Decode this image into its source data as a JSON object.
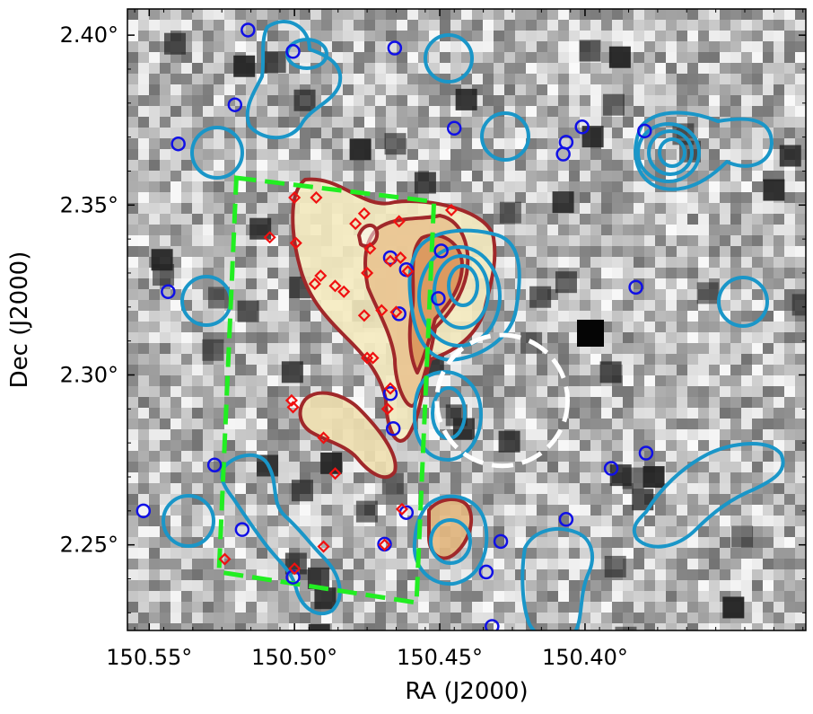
{
  "chart_data": {
    "type": "scatter",
    "title": "",
    "xlabel": "RA (J2000)",
    "ylabel": "Dec (J2000)",
    "x_reversed": true,
    "xlim": [
      150.5575,
      150.324
    ],
    "ylim": [
      2.2248,
      2.4077
    ],
    "xticks": [
      150.55,
      150.5,
      150.45,
      150.4
    ],
    "xtick_labels": [
      "150.55°",
      "150.50°",
      "150.45°",
      "150.40°"
    ],
    "yticks": [
      2.25,
      2.3,
      2.35,
      2.4
    ],
    "ytick_labels": [
      "2.25°",
      "2.30°",
      "2.35°",
      "2.40°"
    ],
    "grid": false,
    "background": "greyscale noise image",
    "colors": {
      "blue_marker": "#1010e6",
      "red_marker": "#f01010",
      "cyan_contour": "#1a96c8",
      "red_contour": "#a0282a",
      "field_box": "#22ee22",
      "beam_circle": "#ffffff"
    },
    "series": [
      {
        "marker": "open-circle",
        "color": "#1010e6",
        "points": [
          [
            150.516,
            2.4015
          ],
          [
            150.5005,
            2.3952
          ],
          [
            150.5205,
            2.3795
          ],
          [
            150.4655,
            2.3962
          ],
          [
            150.445,
            2.3726
          ],
          [
            150.401,
            2.373
          ],
          [
            150.4065,
            2.3685
          ],
          [
            150.4075,
            2.365
          ],
          [
            150.3795,
            2.3718
          ],
          [
            150.54,
            2.368
          ],
          [
            150.5435,
            2.3245
          ],
          [
            150.3825,
            2.3258
          ],
          [
            150.467,
            2.3345
          ],
          [
            150.4615,
            2.331
          ],
          [
            150.4495,
            2.3365
          ],
          [
            150.4505,
            2.3225
          ],
          [
            150.464,
            2.318
          ],
          [
            150.467,
            2.2945
          ],
          [
            150.466,
            2.2842
          ],
          [
            150.5275,
            2.2735
          ],
          [
            150.518,
            2.2545
          ],
          [
            150.4615,
            2.2595
          ],
          [
            150.469,
            2.2502
          ],
          [
            150.5005,
            2.2405
          ],
          [
            150.434,
            2.242
          ],
          [
            150.429,
            2.251
          ],
          [
            150.432,
            2.226
          ],
          [
            150.552,
            2.26
          ],
          [
            150.391,
            2.2725
          ],
          [
            150.379,
            2.277
          ],
          [
            150.4065,
            2.2575
          ]
        ]
      },
      {
        "marker": "open-diamond",
        "color": "#f01010",
        "points": [
          [
            150.5,
            2.3522
          ],
          [
            150.4925,
            2.3522
          ],
          [
            150.446,
            2.3485
          ],
          [
            150.476,
            2.3475
          ],
          [
            150.479,
            2.3445
          ],
          [
            150.464,
            2.3452
          ],
          [
            150.5085,
            2.3405
          ],
          [
            150.4995,
            2.3388
          ],
          [
            150.474,
            2.3372
          ],
          [
            150.467,
            2.3335
          ],
          [
            150.4635,
            2.3345
          ],
          [
            150.461,
            2.3305
          ],
          [
            150.491,
            2.3292
          ],
          [
            150.475,
            2.33
          ],
          [
            150.493,
            2.3268
          ],
          [
            150.486,
            2.3262
          ],
          [
            150.483,
            2.3245
          ],
          [
            150.476,
            2.3175
          ],
          [
            150.47,
            2.319
          ],
          [
            150.465,
            2.3185
          ],
          [
            150.473,
            2.305
          ],
          [
            150.475,
            2.305
          ],
          [
            150.467,
            2.296
          ],
          [
            150.501,
            2.2925
          ],
          [
            150.5005,
            2.2905
          ],
          [
            150.468,
            2.29
          ],
          [
            150.49,
            2.2815
          ],
          [
            150.486,
            2.271
          ],
          [
            150.463,
            2.2605
          ],
          [
            150.469,
            2.25
          ],
          [
            150.49,
            2.2495
          ],
          [
            150.5,
            2.243
          ],
          [
            150.524,
            2.2458
          ]
        ]
      }
    ],
    "field_box_corners": [
      [
        150.52,
        2.358
      ],
      [
        150.452,
        2.351
      ],
      [
        150.458,
        2.233
      ],
      [
        150.526,
        2.242
      ]
    ],
    "beam_circle": {
      "center": [
        150.4285,
        2.2925
      ],
      "radius_deg": 0.0225
    }
  }
}
